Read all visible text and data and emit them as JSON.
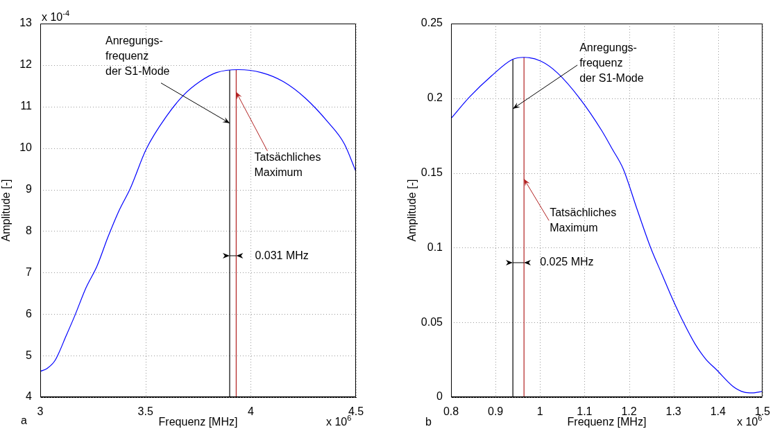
{
  "chart_data": [
    {
      "type": "line",
      "xlabel": "Frequenz [MHz]",
      "ylabel": "Amplitude [-]",
      "xlim": [
        3,
        4.5
      ],
      "xticks": [
        3,
        3.5,
        4,
        4.5
      ],
      "ylim": [
        4,
        13
      ],
      "yticks": [
        4,
        5,
        6,
        7,
        8,
        9,
        10,
        11,
        12,
        13
      ],
      "grid": true,
      "series": [
        {
          "color": "#0000ff",
          "x": [
            3,
            3.032,
            3.071,
            3.124,
            3.164,
            3.217,
            3.27,
            3.322,
            3.375,
            3.428,
            3.503,
            3.6,
            3.68,
            3.758,
            3.838,
            3.942,
            4.049,
            4.155,
            4.26,
            4.366,
            4.445,
            4.5
          ],
          "values": [
            4.62,
            4.69,
            4.89,
            5.49,
            5.96,
            6.63,
            7.16,
            7.86,
            8.5,
            9.03,
            9.97,
            10.77,
            11.27,
            11.6,
            11.82,
            11.89,
            11.82,
            11.6,
            11.2,
            10.63,
            10.1,
            9.43
          ]
        },
        {
          "color": "#000000",
          "x": [
            3.9,
            3.9
          ],
          "values": [
            4,
            11.88
          ]
        },
        {
          "color": "#b22222",
          "x": [
            3.931,
            3.931
          ],
          "values": [
            4,
            11.89
          ]
        }
      ],
      "annotations": [
        {
          "text": "Anregungs-\nfrequenz\nder S1-Mode",
          "x": 3.9,
          "y": 10.6
        },
        {
          "text": "Tatsächliches\nMaximum",
          "x": 3.931,
          "y": 11.35
        },
        {
          "text": "0.031 MHz",
          "x": 3.931,
          "y": 7.4
        },
        "x 10$^{-4}$",
        "x 10$^{6}$",
        "a"
      ]
    },
    {
      "type": "line",
      "xlabel": "Frequenz [MHz]",
      "ylabel": "Amplitude [-]",
      "xlim": [
        0.8,
        1.5
      ],
      "xticks": [
        0.8,
        0.9,
        1,
        1.1,
        1.2,
        1.3,
        1.4,
        1.5
      ],
      "ylim": [
        0,
        0.25
      ],
      "yticks": [
        0,
        0.05,
        0.1,
        0.15,
        0.2,
        0.25
      ],
      "grid": true,
      "series": [
        {
          "color": "#0000ff",
          "x": [
            0.8,
            0.842,
            0.891,
            0.938,
            0.964,
            1.002,
            1.039,
            1.089,
            1.138,
            1.163,
            1.187,
            1.218,
            1.249,
            1.274,
            1.298,
            1.323,
            1.348,
            1.372,
            1.397,
            1.434,
            1.459,
            1.477,
            1.5
          ],
          "values": [
            0.1865,
            0.201,
            0.215,
            0.226,
            0.2274,
            0.2248,
            0.217,
            0.2,
            0.1787,
            0.1657,
            0.1527,
            0.1258,
            0.0997,
            0.0822,
            0.0655,
            0.0497,
            0.0358,
            0.0256,
            0.0182,
            0.0071,
            0.0033,
            0.0028,
            0.0039
          ]
        },
        {
          "color": "#000000",
          "x": [
            0.939,
            0.939
          ],
          "values": [
            0,
            0.226
          ]
        },
        {
          "color": "#b22222",
          "x": [
            0.964,
            0.964
          ],
          "values": [
            0,
            0.2274
          ]
        }
      ],
      "annotations": [
        {
          "text": "Anregungs-\nfrequenz\nder S1-Mode",
          "x": 0.939,
          "y": 0.193
        },
        {
          "text": "Tatsächliches\nMaximum",
          "x": 0.964,
          "y": 0.146
        },
        {
          "text": "0.025 MHz",
          "x": 0.964,
          "y": 0.09
        },
        "x 10$^{6}$",
        "b"
      ]
    }
  ]
}
